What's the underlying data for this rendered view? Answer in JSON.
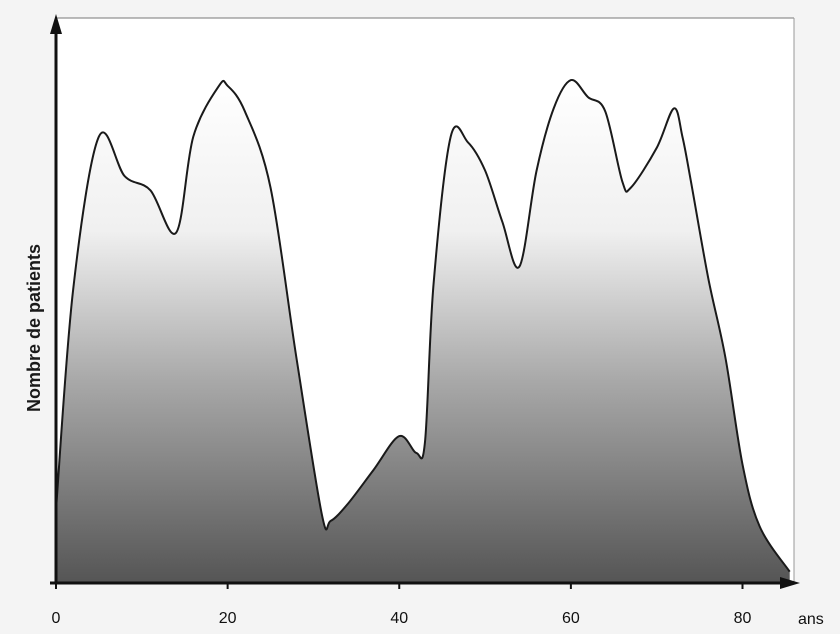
{
  "chart_data": {
    "type": "area",
    "title": "",
    "xlabel": "",
    "ylabel": "Nombre de patients",
    "x_unit": "ans",
    "xlim": [
      0,
      86
    ],
    "ylim": [
      0,
      100
    ],
    "x_ticks": [
      0,
      20,
      40,
      60,
      80
    ],
    "grid": false,
    "legend": "none",
    "colors": {
      "line": "#1a1a1a",
      "fill_top": "#ffffff",
      "fill_bottom": "#555555",
      "axis": "#111111"
    },
    "series": [
      {
        "x": [
          0,
          2,
          5,
          8,
          11,
          14,
          16,
          19,
          20,
          22,
          25,
          28,
          31,
          32,
          34,
          37,
          40,
          42,
          43,
          44,
          46,
          48,
          50,
          52,
          54,
          56,
          58,
          60,
          62,
          64,
          66,
          67,
          70,
          72,
          73,
          74,
          76,
          78,
          80,
          82,
          85.5
        ],
        "y": [
          13,
          52,
          79,
          72,
          69.5,
          62,
          79,
          88,
          88,
          83.5,
          70,
          40,
          12,
          11,
          14,
          20,
          26,
          23,
          25,
          53,
          79,
          78,
          73,
          64,
          56,
          73,
          84,
          89,
          86,
          83.5,
          71,
          70,
          77,
          84,
          79,
          71,
          54,
          40,
          21,
          10,
          2
        ]
      }
    ]
  }
}
